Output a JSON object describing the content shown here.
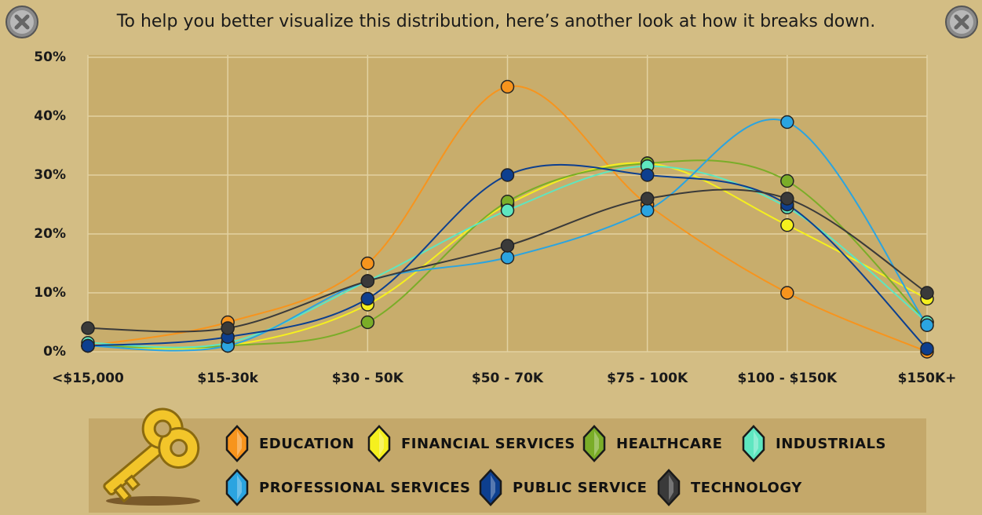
{
  "chart_data": {
    "type": "line",
    "title": "To help you better visualize this distribution, here’s another look at how it breaks down.",
    "categories": [
      "<$15,000",
      "$15-30k",
      "$30 - 50K",
      "$50 - 70K",
      "$75 - 100K",
      "$100 - $150K",
      "$150K+"
    ],
    "ylim": [
      0,
      50
    ],
    "yticks": [
      {
        "value": 0,
        "label": "0%"
      },
      {
        "value": 10,
        "label": "10%"
      },
      {
        "value": 20,
        "label": "20%"
      },
      {
        "value": 30,
        "label": "30%"
      },
      {
        "value": 40,
        "label": "40%"
      },
      {
        "value": 50,
        "label": "50%"
      }
    ],
    "grid": true,
    "series": [
      {
        "name": "EDUCATION",
        "color": "#f7941d",
        "values": [
          1,
          5,
          15,
          45,
          25,
          10,
          0
        ]
      },
      {
        "name": "FINANCIAL SERVICES",
        "color": "#f5f01e",
        "values": [
          1,
          1,
          8,
          25,
          32,
          21.5,
          9
        ]
      },
      {
        "name": "HEALTHCARE",
        "color": "#7aad28",
        "values": [
          1,
          1,
          5,
          25.5,
          32,
          29,
          5
        ]
      },
      {
        "name": "INDUSTRIALS",
        "color": "#5ee6c0",
        "values": [
          1.5,
          1.5,
          12,
          24,
          31.5,
          24.5,
          5
        ]
      },
      {
        "name": "PROFESSIONAL SERVICES",
        "color": "#2ba4e0",
        "values": [
          1,
          1,
          12,
          16,
          24,
          39,
          4.5
        ]
      },
      {
        "name": "PUBLIC SERVICE",
        "color": "#0d3f8f",
        "values": [
          1,
          2.5,
          9,
          30,
          30,
          25,
          0.5
        ]
      },
      {
        "name": "TECHNOLOGY",
        "color": "#3a3a3a",
        "values": [
          4,
          4,
          12,
          18,
          26,
          26,
          10
        ]
      }
    ]
  }
}
